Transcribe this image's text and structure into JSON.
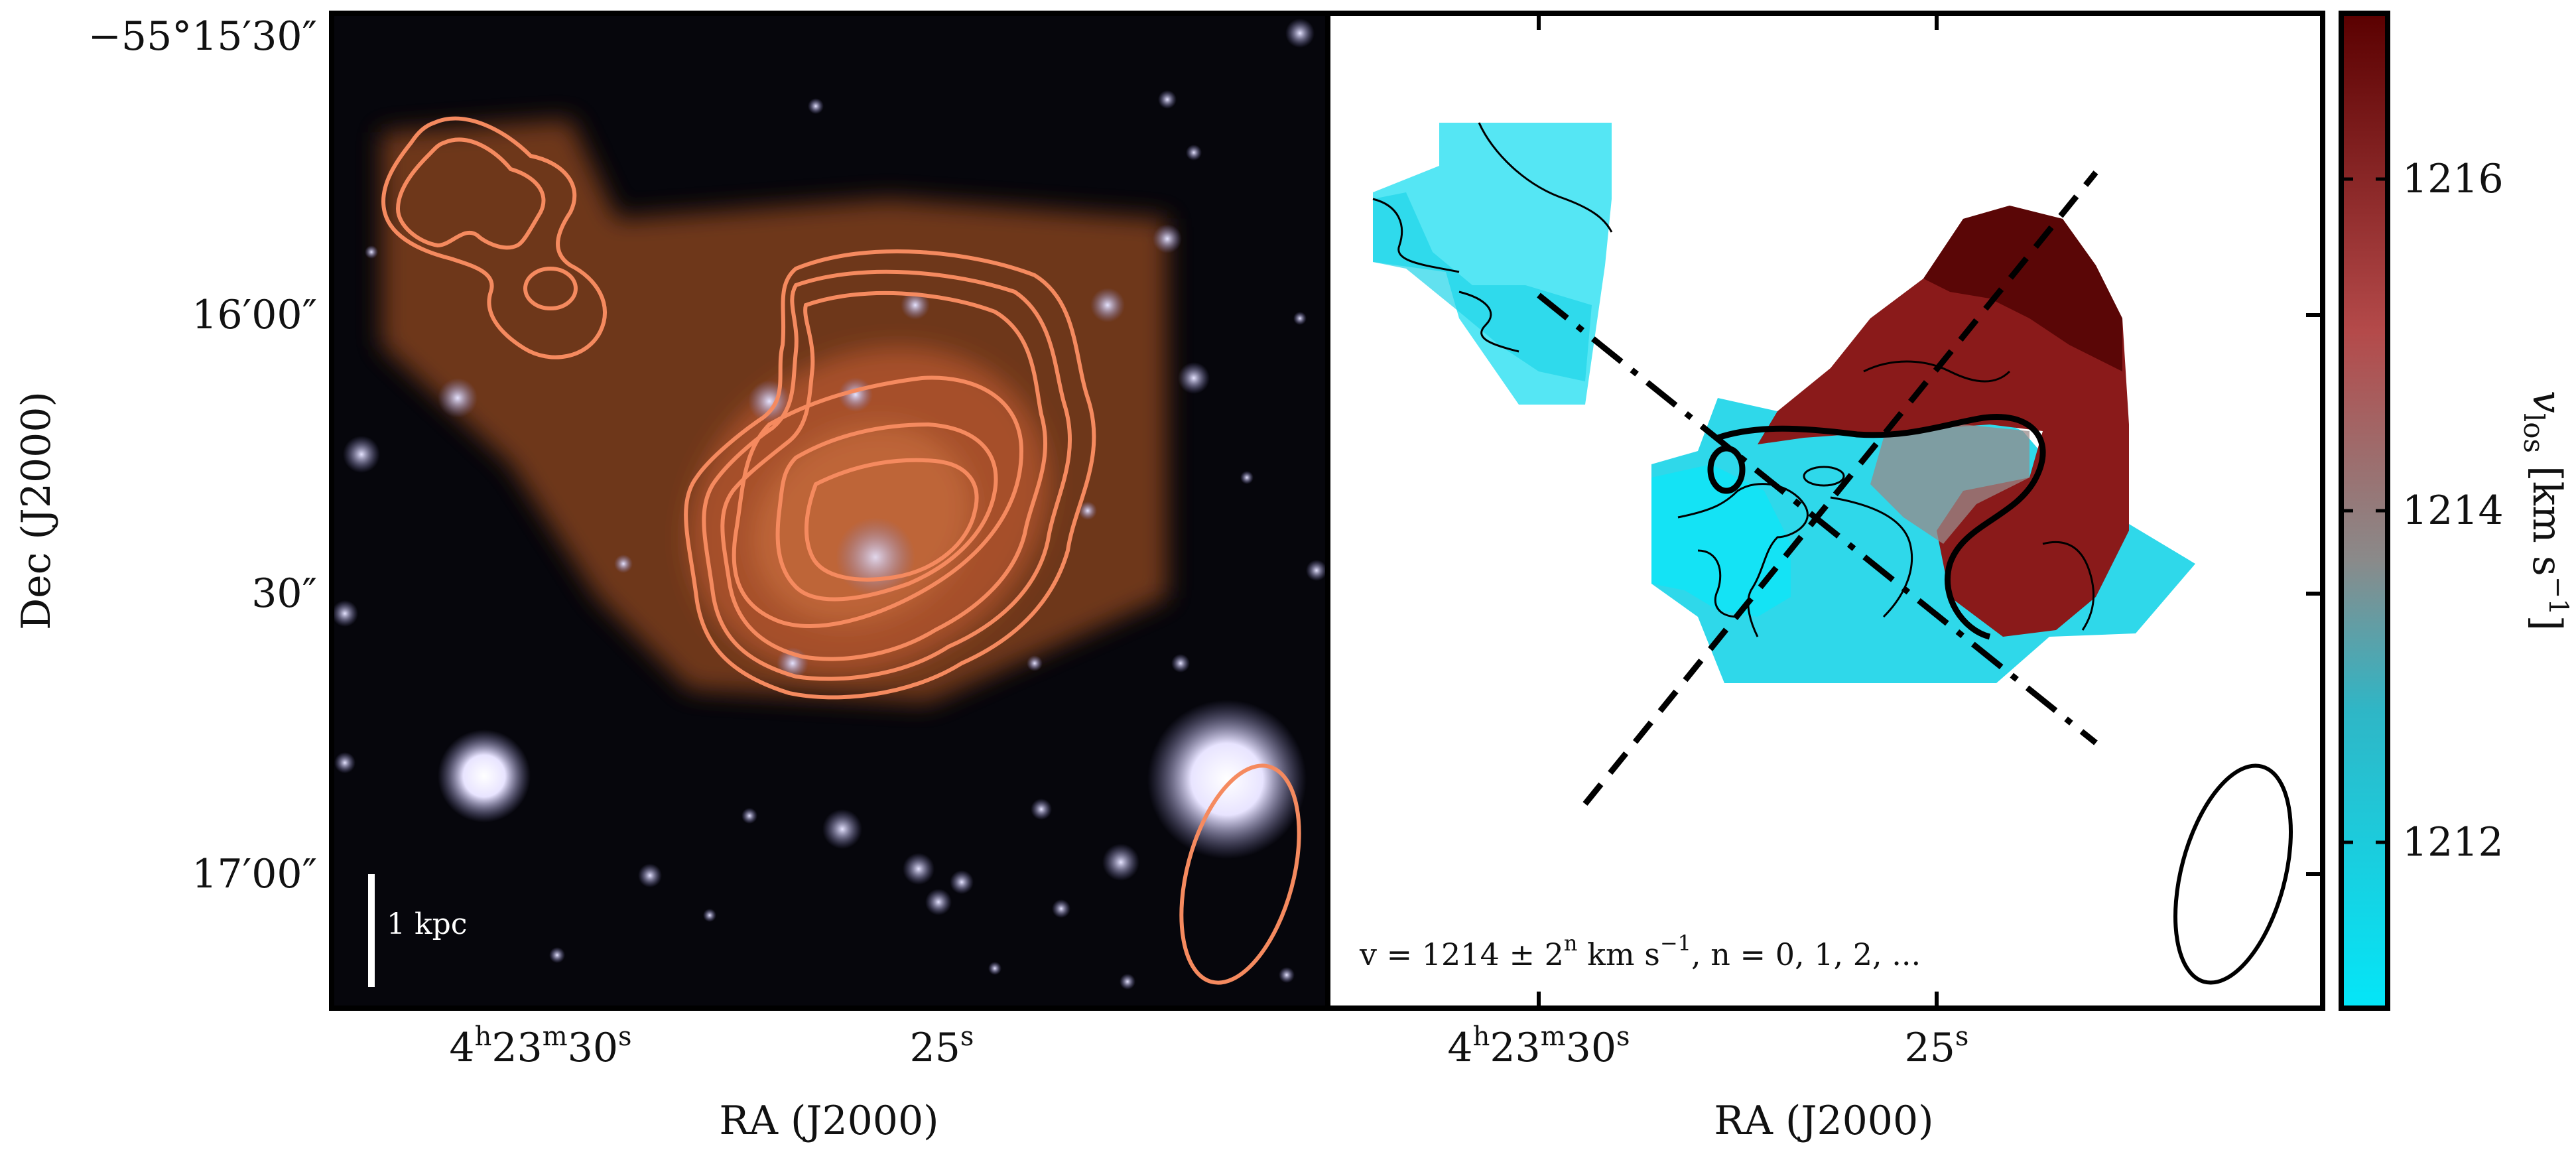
{
  "chart_data": [
    {
      "type": "image",
      "panel": "left",
      "description_none": "",
      "xlabel": "RA (J2000)",
      "ylabel": "Dec (J2000)",
      "x_ticks": [
        {
          "label": "4h23m30s",
          "main": "4",
          "sup1": "h",
          "mid": "23",
          "sup2": "m",
          "tail": "30",
          "sup3": "s"
        },
        {
          "label": "25s",
          "main": "25",
          "sup": "s"
        }
      ],
      "y_ticks": [
        "−55°15′30″",
        "16′00″",
        "30″",
        "17′00″"
      ],
      "scale_bar": "1 kpc",
      "contour_color": "#f58a5f"
    },
    {
      "type": "heatmap",
      "panel": "right",
      "xlabel": "RA (J2000)",
      "x_ticks": [
        {
          "label": "4h23m30s",
          "main": "4",
          "sup1": "h",
          "mid": "23",
          "sup2": "m",
          "tail": "30",
          "sup3": "s"
        },
        {
          "label": "25s",
          "main": "25",
          "sup": "s"
        }
      ],
      "legend_text": {
        "pre": "v = 1214 ± 2",
        "sup": "n",
        "mid": " km s",
        "sup2": "−1",
        "post": ", n = 0, 1, 2, ..."
      },
      "colorbar": {
        "label": "v_los [km s^-1]",
        "label_parts": {
          "v": "v",
          "sub": "los",
          "unit": " [km s",
          "sup": "−1",
          "end": "]"
        },
        "range": [
          1211,
          1217
        ],
        "ticks": [
          1212,
          1214,
          1216
        ],
        "colors": [
          "#04e6f8",
          "#2fb6c6",
          "#8a8a8a",
          "#b44a4a",
          "#5a0000"
        ]
      }
    }
  ]
}
